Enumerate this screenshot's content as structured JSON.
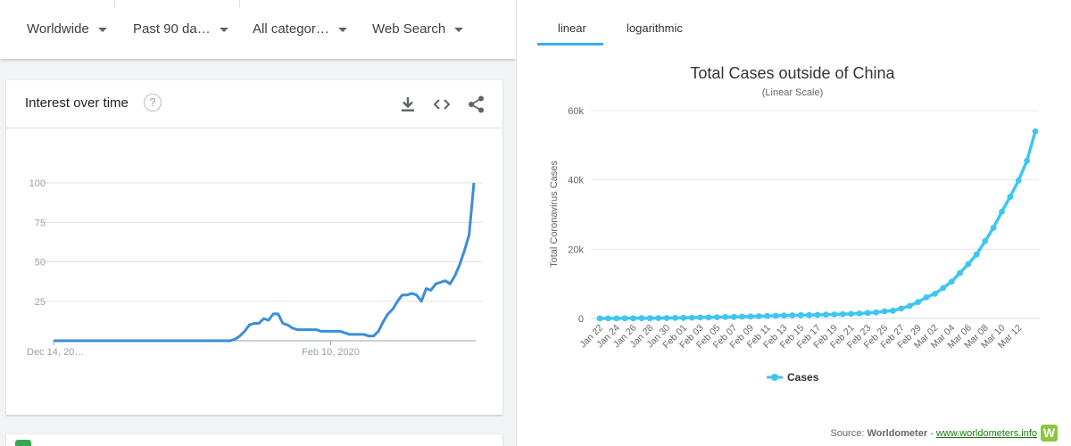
{
  "trends": {
    "filters": [
      {
        "label": "Worldwide"
      },
      {
        "label": "Past 90 da…"
      },
      {
        "label": "All categor…"
      },
      {
        "label": "Web Search"
      }
    ],
    "card_title": "Interest over time",
    "help_glyph": "?",
    "icons": [
      "download-icon",
      "embed-code-icon",
      "share-icon"
    ],
    "colors": {
      "line": "#3b8ed8",
      "grid": "#e0e0e0",
      "axis_text": "#9aa0a6"
    }
  },
  "worldometer": {
    "tabs": [
      {
        "label": "linear"
      },
      {
        "label": "logarithmic"
      }
    ],
    "source_prefix": "Source:",
    "source_name": "Worldometer",
    "source_sep": "-",
    "source_url": "www.worldometers.info",
    "logo_glyph": "W",
    "colors": {
      "series": "#3fc6f0",
      "grid": "#e6e6e6",
      "tab_accent": "#3aaef0"
    }
  },
  "chart_data": [
    {
      "type": "line",
      "title": "Interest over time",
      "xlabel": "",
      "ylabel": "",
      "ylim": [
        0,
        100
      ],
      "yticks": [
        25,
        50,
        75,
        100
      ],
      "x_tick_labels": [
        "Dec 14, 20…",
        "Feb 10, 2020"
      ],
      "x_tick_indices": [
        0,
        58
      ],
      "series": [
        {
          "name": "Interest",
          "values": [
            0,
            0,
            0,
            0,
            0,
            0,
            0,
            0,
            0,
            0,
            0,
            0,
            0,
            0,
            0,
            0,
            0,
            0,
            0,
            0,
            0,
            0,
            0,
            0,
            0,
            0,
            0,
            0,
            0,
            0,
            0,
            0,
            0,
            0,
            0,
            0,
            0,
            0,
            1,
            3,
            6,
            10,
            11,
            11,
            14,
            13,
            17,
            17,
            11,
            10,
            8,
            7,
            7,
            7,
            7,
            7,
            6,
            6,
            6,
            6,
            6,
            5,
            4,
            4,
            4,
            4,
            3,
            3,
            6,
            12,
            17,
            20,
            25,
            29,
            29,
            30,
            29,
            25,
            33,
            32,
            36,
            37,
            38,
            36,
            41,
            48,
            57,
            67,
            100
          ]
        }
      ]
    },
    {
      "type": "line",
      "title": "Total Cases outside of China",
      "subtitle": "(Linear Scale)",
      "xlabel": "",
      "ylabel": "Total Coronavirus Cases",
      "ylim": [
        0,
        60000
      ],
      "yticks": [
        0,
        20000,
        40000,
        60000
      ],
      "ytick_labels": [
        "0",
        "20k",
        "40k",
        "60k"
      ],
      "legend": {
        "label": "Cases",
        "position": "bottom-center"
      },
      "x_tick_labels": [
        "Jan 22",
        "Jan 24",
        "Jan 26",
        "Jan 28",
        "Jan 30",
        "Feb 01",
        "Feb 03",
        "Feb 05",
        "Feb 07",
        "Feb 09",
        "Feb 11",
        "Feb 13",
        "Feb 15",
        "Feb 17",
        "Feb 19",
        "Feb 21",
        "Feb 23",
        "Feb 25",
        "Feb 27",
        "Feb 29",
        "Mar 02",
        "Mar 04",
        "Mar 06",
        "Mar 08",
        "Mar 10",
        "Mar 12"
      ],
      "series": [
        {
          "name": "Cases",
          "values": [
            9,
            14,
            28,
            39,
            58,
            66,
            83,
            104,
            132,
            164,
            188,
            235,
            283,
            320,
            362,
            400,
            450,
            510,
            570,
            640,
            710,
            780,
            860,
            910,
            940,
            975,
            1030,
            1100,
            1160,
            1230,
            1320,
            1430,
            1600,
            1750,
            2050,
            2250,
            2850,
            3600,
            4750,
            6100,
            7100,
            8800,
            10600,
            13100,
            15700,
            18500,
            22300,
            26200,
            30800,
            35100,
            39800,
            45500,
            54000
          ]
        }
      ]
    }
  ]
}
